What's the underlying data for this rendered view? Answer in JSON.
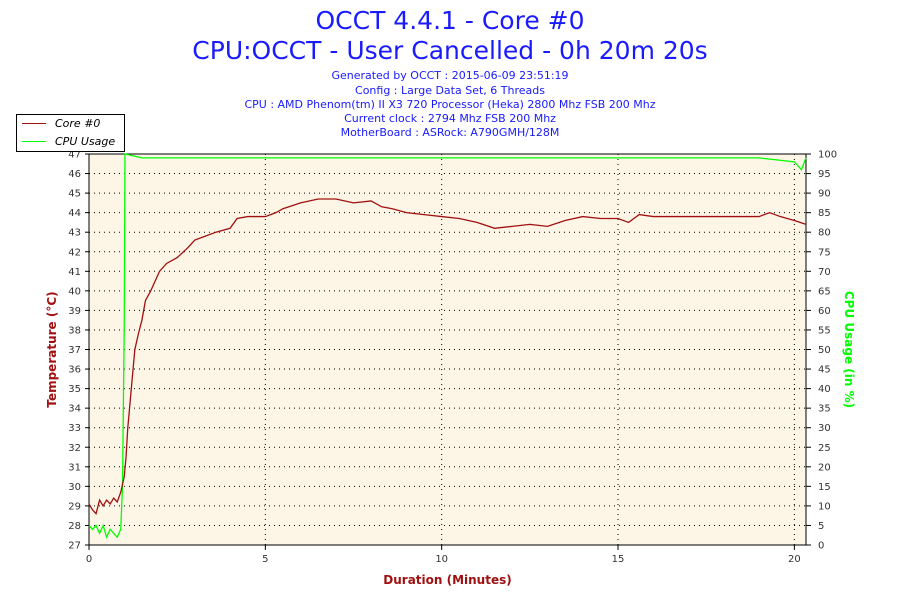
{
  "title": "OCCT 4.4.1 - Core #0",
  "subtitle": "CPU:OCCT - User Cancelled - 0h 20m 20s",
  "info": [
    "Generated by OCCT : 2015-06-09 23:51:19",
    "Config : Large Data Set, 6 Threads",
    "CPU : AMD Phenom(tm) II X3 720 Processor (Heka) 2800 Mhz FSB 200 Mhz",
    "Current clock : 2794 Mhz FSB 200 Mhz",
    "MotherBoard : ASRock: A790GMH/128M"
  ],
  "colors": {
    "title": "#1a1aff",
    "temperature": "#a01010",
    "cpu": "#00ff00",
    "plot_bg": "#fdf5e6"
  },
  "chart_data": {
    "type": "line",
    "xlabel": "Duration (Minutes)",
    "ylabel": "Temperature (°C)",
    "y2label": "CPU Usage (in %)",
    "xlim": [
      0,
      20.33
    ],
    "ylim": [
      27,
      47
    ],
    "y2lim": [
      0,
      100
    ],
    "xticks": [
      0,
      5,
      10,
      15,
      20
    ],
    "yticks": [
      27,
      28,
      29,
      30,
      31,
      32,
      33,
      34,
      35,
      36,
      37,
      38,
      39,
      40,
      41,
      42,
      43,
      44,
      45,
      46,
      47
    ],
    "y2ticks": [
      0,
      5,
      10,
      15,
      20,
      25,
      30,
      35,
      40,
      45,
      50,
      55,
      60,
      65,
      70,
      75,
      80,
      85,
      90,
      95,
      100
    ],
    "grid": true,
    "legend_position": "top-left",
    "series": [
      {
        "name": "Core #0",
        "axis": "left",
        "x": [
          0,
          0.1,
          0.2,
          0.3,
          0.4,
          0.5,
          0.6,
          0.7,
          0.8,
          0.9,
          1.0,
          1.05,
          1.1,
          1.2,
          1.3,
          1.4,
          1.5,
          1.6,
          1.75,
          1.9,
          2.0,
          2.2,
          2.5,
          2.8,
          3.0,
          3.3,
          3.6,
          4.0,
          4.2,
          4.5,
          5.0,
          5.3,
          5.5,
          6.0,
          6.5,
          7.0,
          7.5,
          8.0,
          8.3,
          8.6,
          9.0,
          9.5,
          10,
          10.5,
          11,
          11.5,
          12,
          12.5,
          13,
          13.5,
          14,
          14.5,
          15,
          15.3,
          15.6,
          16,
          16.5,
          17,
          17.5,
          18,
          18.5,
          19,
          19.3,
          19.6,
          20,
          20.33
        ],
        "values": [
          29.1,
          28.8,
          28.6,
          29.3,
          29.0,
          29.3,
          29.1,
          29.4,
          29.2,
          29.7,
          30.5,
          31.5,
          33,
          35,
          37,
          37.8,
          38.5,
          39.5,
          40,
          40.6,
          41,
          41.4,
          41.7,
          42.2,
          42.6,
          42.8,
          43,
          43.2,
          43.7,
          43.8,
          43.8,
          44,
          44.2,
          44.5,
          44.7,
          44.7,
          44.5,
          44.6,
          44.3,
          44.2,
          44.0,
          43.9,
          43.8,
          43.7,
          43.5,
          43.2,
          43.3,
          43.4,
          43.3,
          43.6,
          43.8,
          43.7,
          43.7,
          43.5,
          43.9,
          43.8,
          43.8,
          43.8,
          43.8,
          43.8,
          43.8,
          43.8,
          44.0,
          43.8,
          43.6,
          43.4
        ]
      },
      {
        "name": "CPU Usage",
        "axis": "right",
        "x": [
          0,
          0.1,
          0.2,
          0.3,
          0.4,
          0.5,
          0.6,
          0.7,
          0.8,
          0.9,
          0.95,
          1.0,
          1.02,
          1.5,
          2,
          3,
          4,
          5,
          6,
          7,
          8,
          9,
          10,
          11,
          12,
          13,
          14,
          15,
          16,
          17,
          18,
          19,
          20,
          20.2,
          20.33
        ],
        "values": [
          5,
          4,
          5,
          3,
          5,
          2,
          4,
          3,
          2,
          4,
          15,
          57,
          100,
          99,
          99,
          99,
          99,
          99,
          99,
          99,
          99,
          99,
          99,
          99,
          99,
          99,
          99,
          99,
          99,
          99,
          99,
          99,
          98,
          96,
          99
        ]
      }
    ]
  }
}
